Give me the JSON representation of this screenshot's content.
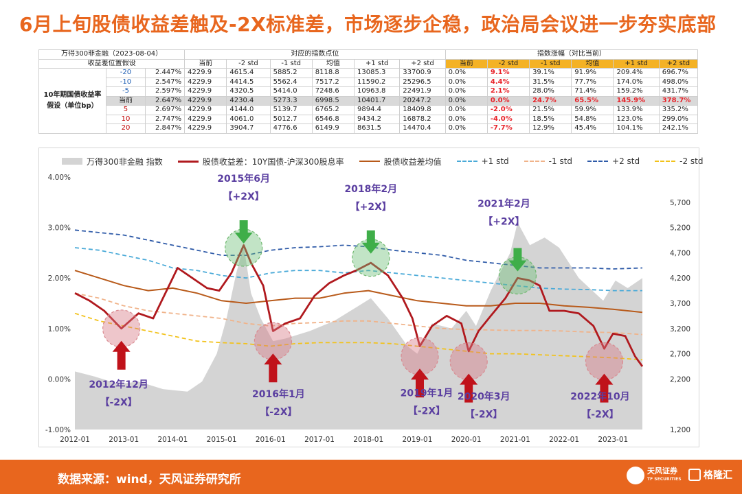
{
  "title": "6月上旬股债收益差触及-2X标准差，市场逐步企稳，政治局会议进一步夯实底部",
  "table": {
    "corner_label": "万得300非金融（2023-08-04）",
    "spread_label": "收益差位置假设",
    "group1_label": "对应的指数点位",
    "group2_label": "指数涨幅（对比当前）",
    "row_group_label": "10年期国债收益率假设（单位bp）",
    "col_headers": [
      "当前",
      "-2 std",
      "-1 std",
      "均值",
      "+1 std",
      "+2 std"
    ],
    "rows": [
      {
        "shift": "-20",
        "spread": "2.447%",
        "points": [
          "4229.9",
          "4615.4",
          "5885.2",
          "8118.8",
          "13085.3",
          "33700.9"
        ],
        "chg": [
          "0.0%",
          "9.1%",
          "39.1%",
          "91.9%",
          "209.4%",
          "696.7%"
        ]
      },
      {
        "shift": "-10",
        "spread": "2.547%",
        "points": [
          "4229.9",
          "4414.5",
          "5562.4",
          "7517.2",
          "11590.2",
          "25296.5"
        ],
        "chg": [
          "0.0%",
          "4.4%",
          "31.5%",
          "77.7%",
          "174.0%",
          "498.0%"
        ]
      },
      {
        "shift": "-5",
        "spread": "2.597%",
        "points": [
          "4229.9",
          "4320.5",
          "5414.0",
          "7248.6",
          "10963.8",
          "22491.9"
        ],
        "chg": [
          "0.0%",
          "2.1%",
          "28.0%",
          "71.4%",
          "159.2%",
          "431.7%"
        ]
      },
      {
        "shift": "当前",
        "spread": "2.647%",
        "points": [
          "4229.9",
          "4230.4",
          "5273.3",
          "6998.5",
          "10401.7",
          "20247.2"
        ],
        "chg": [
          "0.0%",
          "0.0%",
          "24.7%",
          "65.5%",
          "145.9%",
          "378.7%"
        ]
      },
      {
        "shift": "5",
        "spread": "2.697%",
        "points": [
          "4229.9",
          "4144.0",
          "5139.7",
          "6765.2",
          "9894.4",
          "18409.8"
        ],
        "chg": [
          "0.0%",
          "-2.0%",
          "21.5%",
          "59.9%",
          "133.9%",
          "335.2%"
        ]
      },
      {
        "shift": "10",
        "spread": "2.747%",
        "points": [
          "4229.9",
          "4061.0",
          "5012.7",
          "6546.8",
          "9434.2",
          "16878.2"
        ],
        "chg": [
          "0.0%",
          "-4.0%",
          "18.5%",
          "54.8%",
          "123.0%",
          "299.0%"
        ]
      },
      {
        "shift": "20",
        "spread": "2.847%",
        "points": [
          "4229.9",
          "3904.7",
          "4776.6",
          "6149.9",
          "8631.5",
          "14470.4"
        ],
        "chg": [
          "0.0%",
          "-7.7%",
          "12.9%",
          "45.4%",
          "104.1%",
          "242.1%"
        ]
      }
    ]
  },
  "legend": {
    "index": "万得300非金融 指数",
    "spread": "股债收益差：10Y国债-沪深300股息率",
    "mean": "股债收益差均值",
    "p1": "+1 std",
    "m1": "-1 std",
    "p2": "+2 std",
    "m2": "-2 std"
  },
  "colors": {
    "title": "#e8661e",
    "spread": "#b0191e",
    "mean": "#b85a1a",
    "p1": "#4aaad8",
    "m1": "#f0b38a",
    "p2": "#2f5ba8",
    "m2": "#f2c21b",
    "area": "#d4d4d4",
    "annotation_text": "#5a3ea0",
    "arrow_up": "#c0121a",
    "arrow_down": "#3fae49"
  },
  "source": "数据来源：wind，天风证券研究所",
  "logos": {
    "tf_name": "天风证券",
    "tf_sub": "TF SECURITIES",
    "glh": "格隆汇"
  },
  "chart_data": {
    "type": "line",
    "x_ticks": [
      "2012-01",
      "2013-01",
      "2014-01",
      "2015-01",
      "2016-01",
      "2017-01",
      "2018-01",
      "2019-01",
      "2020-01",
      "2021-01",
      "2022-01",
      "2023-01"
    ],
    "y_left_ticks": [
      "4.00%",
      "3.00%",
      "2.00%",
      "1.00%",
      "0.00%",
      "-1.00%"
    ],
    "y_left_range": [
      -1.0,
      4.0
    ],
    "y_right_ticks": [
      "5,700",
      "5,200",
      "4,700",
      "4,200",
      "3,700",
      "3,200",
      "2,700",
      "2,200",
      "1,200"
    ],
    "y_right_range": [
      1200,
      6200
    ],
    "x_range": [
      2012.0,
      2023.6
    ],
    "grid": false,
    "legend_position": "top",
    "series": [
      {
        "name": "万得300非金融 指数",
        "axis": "right",
        "kind": "area",
        "x": [
          2012.0,
          2012.4,
          2012.9,
          2013.3,
          2013.8,
          2014.3,
          2014.6,
          2014.9,
          2015.1,
          2015.3,
          2015.45,
          2015.6,
          2015.8,
          2016.05,
          2016.3,
          2016.8,
          2017.3,
          2017.8,
          2018.05,
          2018.4,
          2018.8,
          2019.0,
          2019.3,
          2019.7,
          2020.0,
          2020.2,
          2020.5,
          2020.9,
          2021.05,
          2021.3,
          2021.6,
          2021.9,
          2022.3,
          2022.8,
          2023.05,
          2023.3,
          2023.6
        ],
        "y": [
          2350,
          2250,
          2100,
          2150,
          2000,
          1950,
          2150,
          2700,
          3400,
          4300,
          4850,
          3900,
          3400,
          2950,
          3000,
          3150,
          3350,
          3650,
          3800,
          3400,
          2850,
          2700,
          3300,
          3200,
          3550,
          3250,
          3950,
          4700,
          5300,
          4850,
          5000,
          4800,
          4200,
          3750,
          4150,
          4000,
          4200
        ]
      },
      {
        "name": "股债收益差：10Y国债-沪深300股息率",
        "axis": "left",
        "kind": "line",
        "x": [
          2012.0,
          2012.3,
          2012.6,
          2012.95,
          2013.3,
          2013.6,
          2013.9,
          2014.1,
          2014.4,
          2014.7,
          2014.95,
          2015.2,
          2015.45,
          2015.6,
          2015.85,
          2016.05,
          2016.3,
          2016.6,
          2016.9,
          2017.2,
          2017.5,
          2017.75,
          2018.05,
          2018.4,
          2018.7,
          2018.9,
          2019.05,
          2019.3,
          2019.6,
          2019.9,
          2020.05,
          2020.25,
          2020.5,
          2020.8,
          2021.05,
          2021.3,
          2021.5,
          2021.7,
          2022.0,
          2022.3,
          2022.6,
          2022.82,
          2023.0,
          2023.25,
          2023.45,
          2023.6
        ],
        "y": [
          1.7,
          1.55,
          1.35,
          1.0,
          1.3,
          1.2,
          1.8,
          2.2,
          2.0,
          1.8,
          1.75,
          2.1,
          2.65,
          2.3,
          1.85,
          0.95,
          1.1,
          1.2,
          1.65,
          1.9,
          2.05,
          2.15,
          2.3,
          2.05,
          1.6,
          1.2,
          0.65,
          1.05,
          1.25,
          1.1,
          0.55,
          0.95,
          1.25,
          1.6,
          2.0,
          1.95,
          1.85,
          1.35,
          1.35,
          1.3,
          1.05,
          0.6,
          0.9,
          0.85,
          0.45,
          0.25
        ]
      },
      {
        "name": "股债收益差均值",
        "axis": "left",
        "kind": "line",
        "x": [
          2012.0,
          2012.5,
          2013.0,
          2013.5,
          2014.0,
          2014.5,
          2015.0,
          2015.5,
          2016.0,
          2016.5,
          2017.0,
          2017.5,
          2018.0,
          2018.5,
          2019.0,
          2019.5,
          2020.0,
          2020.5,
          2021.0,
          2021.5,
          2022.0,
          2022.5,
          2023.0,
          2023.6
        ],
        "y": [
          2.15,
          2.0,
          1.85,
          1.75,
          1.8,
          1.7,
          1.55,
          1.5,
          1.55,
          1.6,
          1.6,
          1.7,
          1.75,
          1.65,
          1.55,
          1.5,
          1.45,
          1.45,
          1.5,
          1.5,
          1.45,
          1.42,
          1.38,
          1.32
        ]
      },
      {
        "name": "+1 std",
        "axis": "left",
        "kind": "line",
        "x": [
          2012.0,
          2012.5,
          2013.0,
          2013.5,
          2014.0,
          2014.5,
          2015.0,
          2015.5,
          2016.0,
          2016.5,
          2017.0,
          2017.5,
          2018.0,
          2018.5,
          2019.0,
          2019.5,
          2020.0,
          2020.5,
          2021.0,
          2021.5,
          2022.0,
          2022.5,
          2023.0,
          2023.6
        ],
        "y": [
          2.6,
          2.55,
          2.45,
          2.35,
          2.2,
          2.15,
          2.05,
          2.0,
          2.1,
          2.15,
          2.15,
          2.1,
          2.15,
          2.1,
          2.05,
          2.0,
          1.95,
          1.9,
          1.85,
          1.8,
          1.78,
          1.77,
          1.75,
          1.75
        ]
      },
      {
        "name": "-1 std",
        "axis": "left",
        "kind": "line",
        "x": [
          2012.0,
          2012.5,
          2013.0,
          2013.5,
          2014.0,
          2014.5,
          2015.0,
          2015.5,
          2016.0,
          2016.5,
          2017.0,
          2017.5,
          2018.0,
          2018.5,
          2019.0,
          2019.5,
          2020.0,
          2020.5,
          2021.0,
          2021.5,
          2022.0,
          2022.5,
          2023.0,
          2023.6
        ],
        "y": [
          1.7,
          1.6,
          1.45,
          1.35,
          1.3,
          1.25,
          1.2,
          1.1,
          1.05,
          1.1,
          1.12,
          1.15,
          1.15,
          1.1,
          1.05,
          1.0,
          0.98,
          0.97,
          0.96,
          0.96,
          0.95,
          0.93,
          0.92,
          0.88
        ]
      },
      {
        "name": "+2 std",
        "axis": "left",
        "kind": "line",
        "x": [
          2012.0,
          2012.5,
          2013.0,
          2013.5,
          2014.0,
          2014.5,
          2015.0,
          2015.5,
          2016.0,
          2016.5,
          2017.0,
          2017.5,
          2018.0,
          2018.5,
          2019.0,
          2019.5,
          2020.0,
          2020.5,
          2021.0,
          2021.5,
          2022.0,
          2022.5,
          2023.0,
          2023.6
        ],
        "y": [
          2.95,
          2.9,
          2.85,
          2.75,
          2.65,
          2.55,
          2.45,
          2.45,
          2.55,
          2.6,
          2.62,
          2.65,
          2.62,
          2.55,
          2.5,
          2.45,
          2.35,
          2.3,
          2.25,
          2.2,
          2.2,
          2.2,
          2.18,
          2.2
        ]
      },
      {
        "name": "-2 std",
        "axis": "left",
        "kind": "line",
        "x": [
          2012.0,
          2012.5,
          2013.0,
          2013.5,
          2014.0,
          2014.5,
          2015.0,
          2015.5,
          2016.0,
          2016.5,
          2017.0,
          2017.5,
          2018.0,
          2018.5,
          2019.0,
          2019.5,
          2020.0,
          2020.5,
          2021.0,
          2021.5,
          2022.0,
          2022.5,
          2023.0,
          2023.6
        ],
        "y": [
          1.3,
          1.15,
          1.05,
          0.95,
          0.85,
          0.75,
          0.72,
          0.7,
          0.65,
          0.7,
          0.72,
          0.72,
          0.72,
          0.7,
          0.65,
          0.6,
          0.55,
          0.5,
          0.5,
          0.48,
          0.46,
          0.44,
          0.42,
          0.38
        ]
      }
    ],
    "annotations": [
      {
        "date": "2012年12月",
        "tag": "【-2X】",
        "x": 2012.95,
        "y": 1.0,
        "dir": "up"
      },
      {
        "date": "2015年6月",
        "tag": "【+2X】",
        "x": 2015.45,
        "y": 2.6,
        "dir": "down"
      },
      {
        "date": "2016年1月",
        "tag": "【-2X】",
        "x": 2016.05,
        "y": 0.75,
        "dir": "up"
      },
      {
        "date": "2018年2月",
        "tag": "【+2X】",
        "x": 2018.05,
        "y": 2.4,
        "dir": "down"
      },
      {
        "date": "2019年1月",
        "tag": "【-2X】",
        "x": 2019.05,
        "y": 0.45,
        "dir": "up"
      },
      {
        "date": "2020年3月",
        "tag": "【-2X】",
        "x": 2020.05,
        "y": 0.35,
        "dir": "up"
      },
      {
        "date": "2021年2月",
        "tag": "【+2X】",
        "x": 2021.05,
        "y": 2.05,
        "dir": "down"
      },
      {
        "date": "2022年10月",
        "tag": "【-2X】",
        "x": 2022.82,
        "y": 0.35,
        "dir": "up"
      }
    ]
  }
}
